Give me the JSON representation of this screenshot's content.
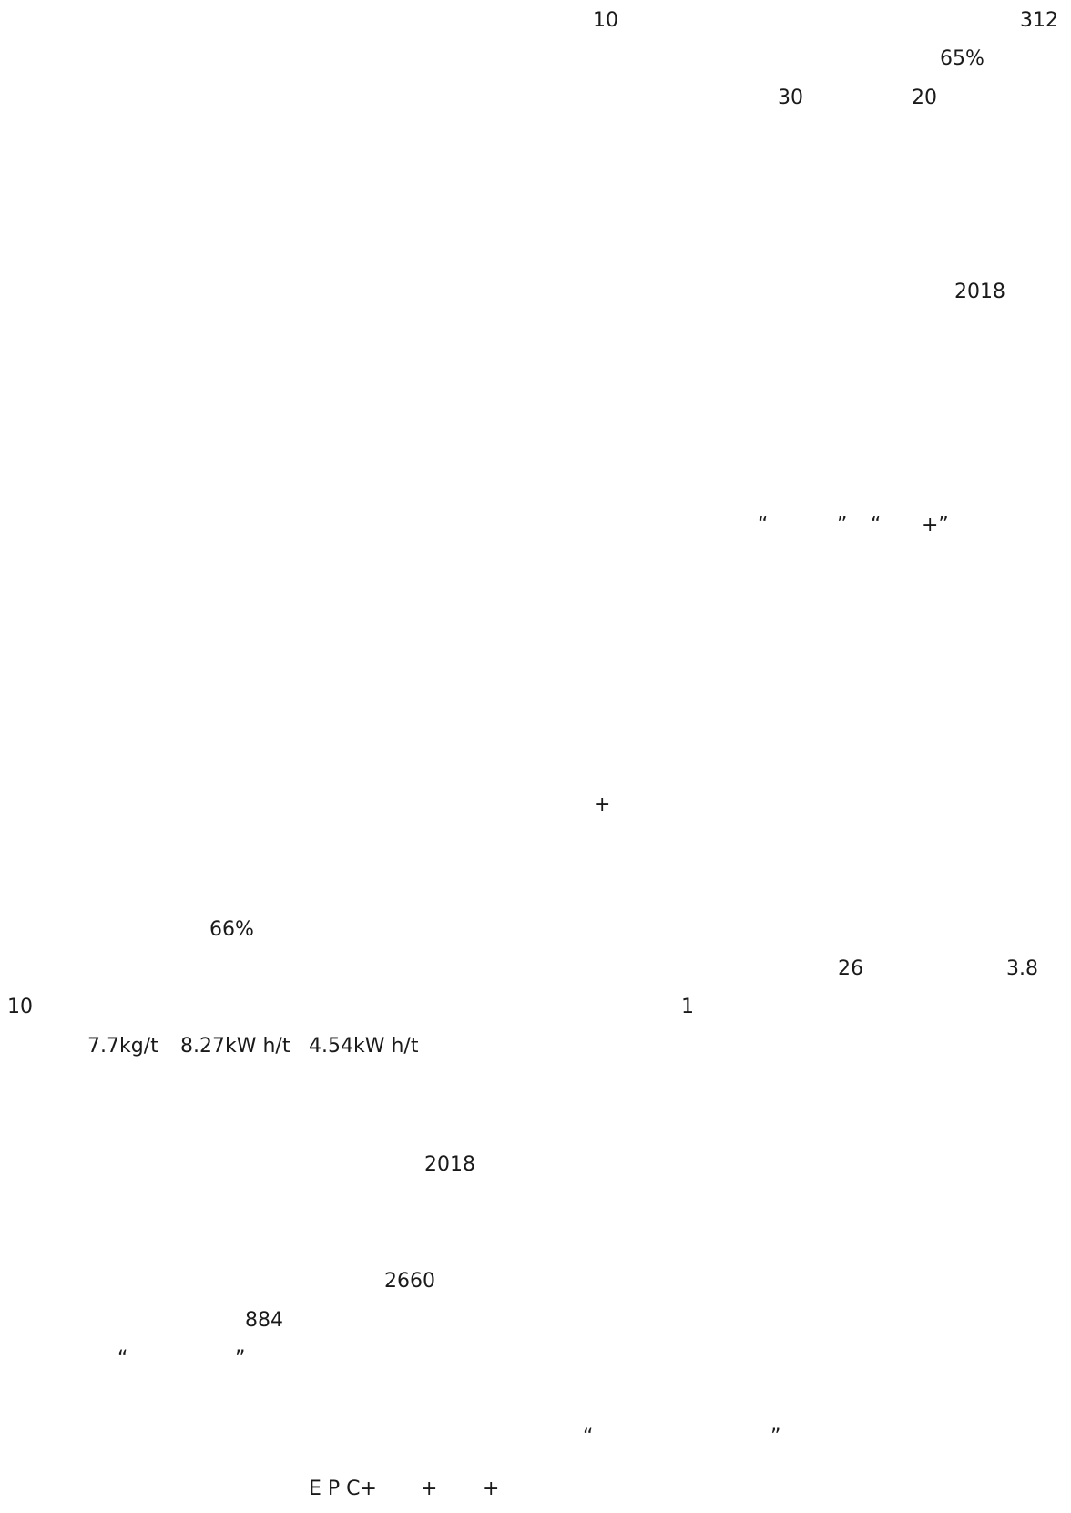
{
  "fragments": [
    "10",
    "312",
    "65%",
    "30",
    "20",
    "2018",
    "“",
    "”",
    "“",
    "+”",
    "+",
    "66%",
    "26",
    "3.8",
    "10",
    "1",
    "7.7kg/t",
    "8.27kW h/t",
    "4.54kW h/t",
    "2018",
    "2660",
    "884",
    "“",
    "”",
    "“",
    "”",
    "E P C+",
    "+",
    "+"
  ]
}
